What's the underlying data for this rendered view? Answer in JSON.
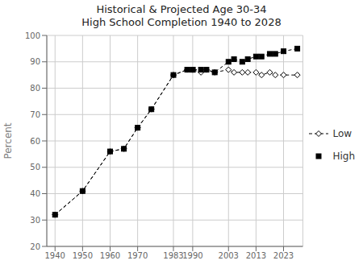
{
  "chart_data": {
    "type": "line",
    "title": "Historical & Projected Age 30-34\nHigh School Completion 1940 to 2028",
    "ylabel": "Percent",
    "x": [
      1940,
      1950,
      1960,
      1965,
      1970,
      1975,
      1983,
      1988,
      1990,
      1990,
      1993,
      1995,
      1998,
      2003,
      2005,
      2008,
      2010,
      2013,
      2015,
      2018,
      2020,
      2023,
      2028
    ],
    "series": [
      {
        "name": "Low",
        "color": "#000000",
        "marker": "diamond",
        "line_style": "dashed",
        "values": [
          32,
          41,
          56,
          57,
          65,
          72,
          85,
          87,
          87,
          87,
          86,
          87,
          86,
          87,
          86,
          86,
          86,
          86,
          85,
          86,
          85,
          85,
          85
        ]
      },
      {
        "name": "High",
        "color": "#000000",
        "marker": "square",
        "line_style": "dashed",
        "values": [
          32,
          41,
          56,
          57,
          65,
          72,
          85,
          87,
          87,
          87,
          87,
          87,
          86,
          90,
          91,
          90,
          91,
          92,
          92,
          93,
          93,
          94,
          95
        ]
      }
    ],
    "xlim": [
      1937,
      2030
    ],
    "xticks": [
      1940,
      1950,
      1960,
      1970,
      1983,
      1990,
      2003,
      2013,
      2023
    ],
    "ylim": [
      20,
      100
    ],
    "yticks": [
      20,
      30,
      40,
      50,
      60,
      70,
      80,
      90,
      100
    ],
    "grid": true,
    "legend": "right"
  }
}
